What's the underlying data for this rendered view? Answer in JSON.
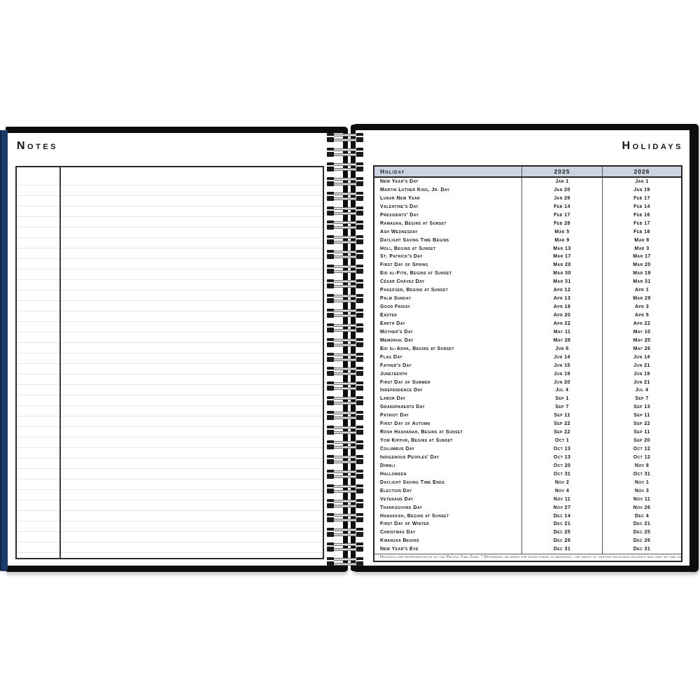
{
  "left_page": {
    "title": "Notes"
  },
  "right_page": {
    "title": "Holidays",
    "table": {
      "columns": [
        "Holiday",
        "2025",
        "2026"
      ],
      "rows": [
        {
          "name": "New Year's Day",
          "d2025": "Jan 1",
          "d2026": "Jan 1"
        },
        {
          "name": "Martin Luther King, Jr. Day",
          "d2025": "Jan 20",
          "d2026": "Jan 19"
        },
        {
          "name": "Lunar New Year",
          "d2025": "Jan 29",
          "d2026": "Feb 17"
        },
        {
          "name": "Valentine's Day",
          "d2025": "Feb 14",
          "d2026": "Feb 14"
        },
        {
          "name": "Presidents' Day",
          "d2025": "Feb 17",
          "d2026": "Feb 16"
        },
        {
          "name": "Ramadan, Begins at Sunset",
          "d2025": "Feb 28",
          "d2026": "Feb 17"
        },
        {
          "name": "Ash Wednesday",
          "d2025": "Mar 5",
          "d2026": "Feb 18"
        },
        {
          "name": "Daylight Saving Time Begins",
          "d2025": "Mar 9",
          "d2026": "Mar 8"
        },
        {
          "name": "Holi, Begins at Sunset",
          "d2025": "Mar 13",
          "d2026": "Mar 3"
        },
        {
          "name": "St. Patrick's Day",
          "d2025": "Mar 17",
          "d2026": "Mar 17"
        },
        {
          "name": "First Day of Spring",
          "d2025": "Mar 20",
          "d2026": "Mar 20"
        },
        {
          "name": "Eid al-Fitr, Begins at Sunset",
          "d2025": "Mar 30",
          "d2026": "Mar 19"
        },
        {
          "name": "César Chávez Day",
          "d2025": "Mar 31",
          "d2026": "Mar 31"
        },
        {
          "name": "Passover, Begins at Sunset",
          "d2025": "Apr 12",
          "d2026": "Apr 1"
        },
        {
          "name": "Palm Sunday",
          "d2025": "Apr 13",
          "d2026": "Mar 29"
        },
        {
          "name": "Good Friday",
          "d2025": "Apr 18",
          "d2026": "Apr 3"
        },
        {
          "name": "Easter",
          "d2025": "Apr 20",
          "d2026": "Apr 5"
        },
        {
          "name": "Earth Day",
          "d2025": "Apr 22",
          "d2026": "Apr 22"
        },
        {
          "name": "Mother's Day",
          "d2025": "May 11",
          "d2026": "May 10"
        },
        {
          "name": "Memorial Day",
          "d2025": "May 26",
          "d2026": "May 25"
        },
        {
          "name": "Eid al-Adha, Begins at Sunset",
          "d2025": "Jun 6",
          "d2026": "May 26"
        },
        {
          "name": "Flag Day",
          "d2025": "Jun 14",
          "d2026": "Jun 14"
        },
        {
          "name": "Father's Day",
          "d2025": "Jun 15",
          "d2026": "Jun 21"
        },
        {
          "name": "Juneteenth",
          "d2025": "Jun 19",
          "d2026": "Jun 19"
        },
        {
          "name": "First Day of Summer",
          "d2025": "Jun 20",
          "d2026": "Jun 21"
        },
        {
          "name": "Independence Day",
          "d2025": "Jul 4",
          "d2026": "Jul 4"
        },
        {
          "name": "Labor Day",
          "d2025": "Sep 1",
          "d2026": "Sep 7"
        },
        {
          "name": "Grandparents Day",
          "d2025": "Sep 7",
          "d2026": "Sep 13"
        },
        {
          "name": "Patriot Day",
          "d2025": "Sep 11",
          "d2026": "Sep 11"
        },
        {
          "name": "First Day of Autumn",
          "d2025": "Sep 22",
          "d2026": "Sep 22"
        },
        {
          "name": "Rosh Hashanah, Begins at Sunset",
          "d2025": "Sep 22",
          "d2026": "Sep 11"
        },
        {
          "name": "Yom Kippur, Begins at Sunset",
          "d2025": "Oct 1",
          "d2026": "Sep 20"
        },
        {
          "name": "Columbus Day",
          "d2025": "Oct 13",
          "d2026": "Oct 12"
        },
        {
          "name": "Indigenous Peoples' Day",
          "d2025": "Oct 13",
          "d2026": "Oct 12"
        },
        {
          "name": "Diwali",
          "d2025": "Oct 20",
          "d2026": "Nov 8"
        },
        {
          "name": "Halloween",
          "d2025": "Oct 31",
          "d2026": "Oct 31"
        },
        {
          "name": "Daylight Saving Time Ends",
          "d2025": "Nov 2",
          "d2026": "Nov 1"
        },
        {
          "name": "Election Day",
          "d2025": "Nov 4",
          "d2026": "Nov 3"
        },
        {
          "name": "Veterans Day",
          "d2025": "Nov 11",
          "d2026": "Nov 11"
        },
        {
          "name": "Thanksgiving Day",
          "d2025": "Nov 27",
          "d2026": "Nov 26"
        },
        {
          "name": "Hanukkah, Begins at Sunset",
          "d2025": "Dec 14",
          "d2026": "Dec 4"
        },
        {
          "name": "First Day of Winter",
          "d2025": "Dec 21",
          "d2026": "Dec 21"
        },
        {
          "name": "Christmas Day",
          "d2025": "Dec 25",
          "d2026": "Dec 25"
        },
        {
          "name": "Kwanzaa Begins",
          "d2025": "Dec 26",
          "d2026": "Dec 26"
        },
        {
          "name": "New Year's Eve",
          "d2025": "Dec 31",
          "d2026": "Dec 31"
        }
      ],
      "footnote": "Holidays are representative of the Pacific Time Zone.   *   Depending on when the moon phase is observed, the dates of certain religious holidays may vary by one day."
    }
  },
  "binding": {
    "loop_count": 30
  },
  "colors": {
    "header_bg": "#ccd4e1",
    "cover_navy": "#1b3a66",
    "cover_black": "#0d0d0d"
  }
}
